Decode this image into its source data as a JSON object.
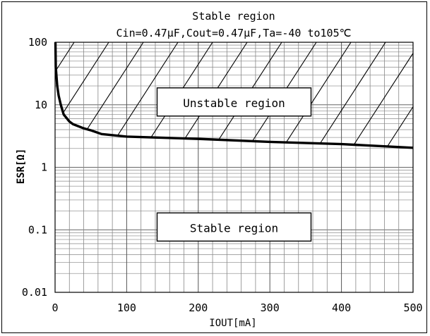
{
  "chart_data": {
    "type": "line",
    "title": "Stable region",
    "subtitle": "Cin=0.47μF,Cout=0.47μF,Ta=-40  to105℃",
    "xlabel": "IOUT[mA]",
    "ylabel": "ESR[Ω]",
    "xlim": [
      0,
      500
    ],
    "ylim": [
      0.01,
      100
    ],
    "yscale": "log",
    "x_ticks": [
      0,
      100,
      200,
      300,
      400,
      500
    ],
    "x_tick_labels": [
      "0",
      "100",
      "200",
      "300",
      "400",
      "500"
    ],
    "y_ticks": [
      100,
      10,
      1,
      0.1,
      0.01
    ],
    "y_tick_labels": [
      "100",
      "10",
      "1",
      "0.1",
      "0.01"
    ],
    "grid": true,
    "series": [
      {
        "values": [
          [
            0.5,
            100
          ],
          [
            1,
            40
          ],
          [
            3,
            20
          ],
          [
            5,
            14
          ],
          [
            8,
            10
          ],
          [
            12,
            7
          ],
          [
            20,
            5.4
          ],
          [
            25,
            4.9
          ],
          [
            40,
            4.2
          ],
          [
            50,
            3.9
          ],
          [
            65,
            3.4
          ],
          [
            100,
            3.1
          ],
          [
            200,
            2.85
          ],
          [
            300,
            2.55
          ],
          [
            400,
            2.35
          ],
          [
            500,
            2.05
          ]
        ]
      }
    ],
    "regions": [
      {
        "label": "Unstable region",
        "x": 250,
        "y": 10,
        "hatched": true
      },
      {
        "label": "Stable region",
        "x": 250,
        "y": 0.1,
        "hatched": false
      }
    ]
  }
}
